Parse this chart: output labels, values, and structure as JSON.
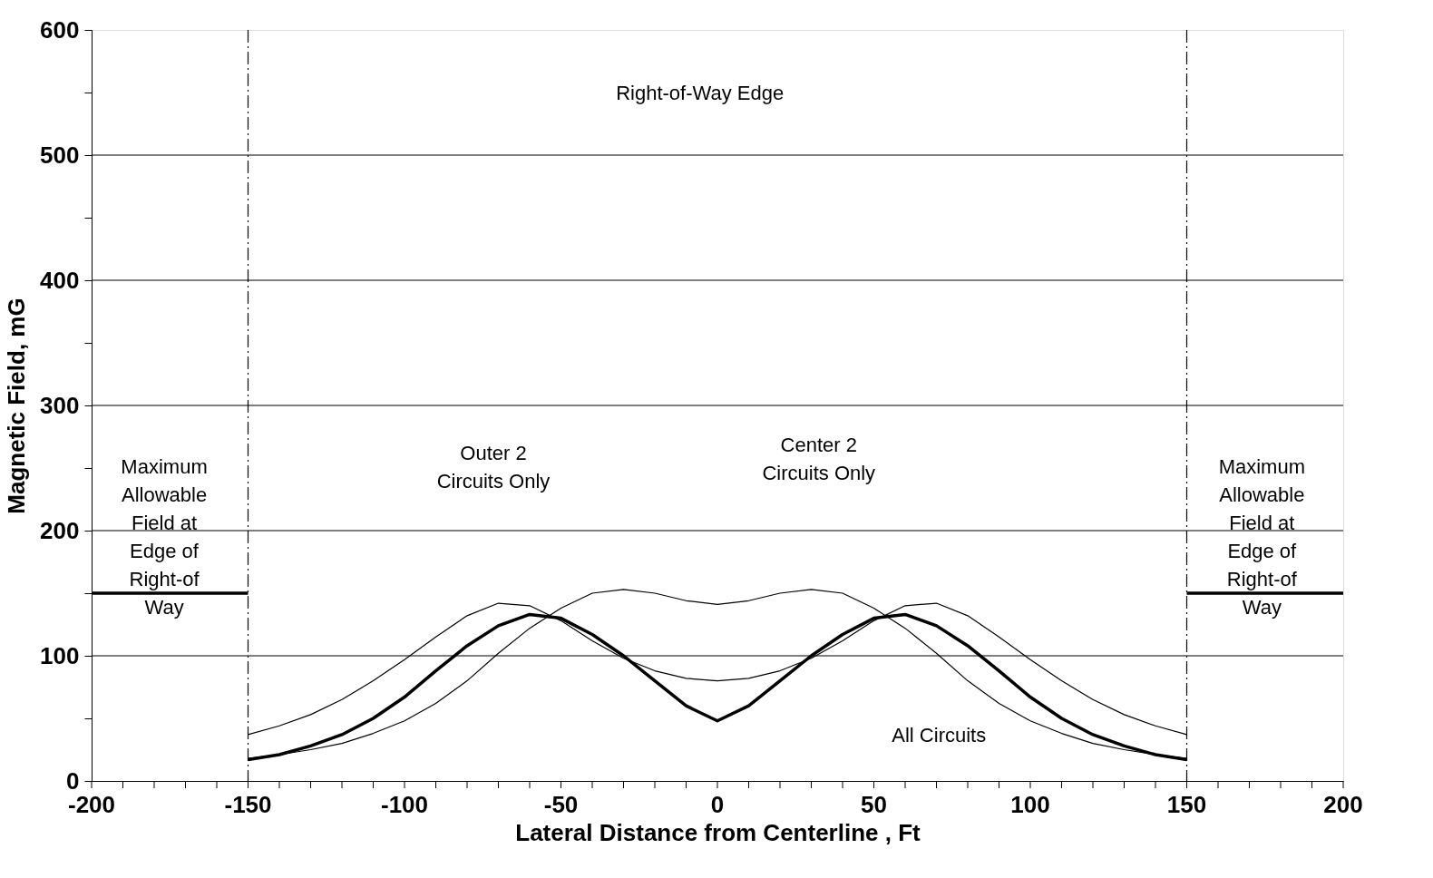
{
  "chart_data": {
    "type": "line",
    "xlabel": "Lateral Distance from Centerline , Ft",
    "ylabel": "Magnetic Field, mG",
    "x": [
      -150,
      -140,
      -130,
      -120,
      -110,
      -100,
      -90,
      -80,
      -70,
      -60,
      -50,
      -40,
      -30,
      -20,
      -10,
      0,
      10,
      20,
      30,
      40,
      50,
      60,
      70,
      80,
      90,
      100,
      110,
      120,
      130,
      140,
      150
    ],
    "series": [
      {
        "color": "#000000",
        "values": [
          17,
          21,
          28,
          37,
          50,
          67,
          88,
          108,
          124,
          133,
          130,
          117,
          100,
          80,
          60,
          48,
          60,
          80,
          100,
          117,
          130,
          133,
          124,
          108,
          88,
          67,
          50,
          37,
          28,
          21,
          17
        ]
      },
      {
        "color": "#000000",
        "values": [
          37,
          44,
          53,
          65,
          80,
          97,
          115,
          132,
          142,
          140,
          128,
          112,
          98,
          88,
          82,
          80,
          82,
          88,
          98,
          112,
          128,
          140,
          142,
          132,
          115,
          97,
          80,
          65,
          53,
          44,
          37
        ]
      },
      {
        "color": "#000000",
        "values": [
          18,
          21,
          25,
          30,
          38,
          48,
          62,
          80,
          102,
          122,
          138,
          150,
          153,
          150,
          144,
          141,
          144,
          150,
          153,
          150,
          138,
          122,
          102,
          80,
          62,
          48,
          38,
          30,
          25,
          21,
          18
        ]
      },
      {
        "color": "#000000",
        "x": [
          -200,
          -150
        ],
        "values": [
          150,
          150
        ]
      },
      {
        "color": "#000000",
        "x": [
          150,
          200
        ],
        "values": [
          150,
          150
        ]
      }
    ],
    "xlim": [
      -200,
      200
    ],
    "ylim": [
      0,
      600
    ],
    "xticks": [
      -200,
      {
        "value": -190,
        "label": null
      },
      {
        "value": -180,
        "label": null
      },
      {
        "value": -170,
        "label": null
      },
      {
        "value": -160,
        "label": null
      },
      -150,
      {
        "value": -140,
        "label": null
      },
      {
        "value": -130,
        "label": null
      },
      {
        "value": -120,
        "label": null
      },
      {
        "value": -110,
        "label": null
      },
      -100,
      {
        "value": -90,
        "label": null
      },
      {
        "value": -80,
        "label": null
      },
      {
        "value": -70,
        "label": null
      },
      {
        "value": -60,
        "label": null
      },
      -50,
      {
        "value": -40,
        "label": null
      },
      {
        "value": -30,
        "label": null
      },
      {
        "value": -20,
        "label": null
      },
      {
        "value": -10,
        "label": null
      },
      0,
      {
        "value": 10,
        "label": null
      },
      {
        "value": 20,
        "label": null
      },
      {
        "value": 30,
        "label": null
      },
      {
        "value": 40,
        "label": null
      },
      50,
      {
        "value": 60,
        "label": null
      },
      {
        "value": 70,
        "label": null
      },
      {
        "value": 80,
        "label": null
      },
      {
        "value": 90,
        "label": null
      },
      100,
      {
        "value": 110,
        "label": null
      },
      {
        "value": 120,
        "label": null
      },
      {
        "value": 130,
        "label": null
      },
      {
        "value": 140,
        "label": null
      },
      150,
      {
        "value": 160,
        "label": null
      },
      {
        "value": 170,
        "label": null
      },
      {
        "value": 180,
        "label": null
      },
      {
        "value": 190,
        "label": null
      },
      200
    ],
    "yticks": [
      0,
      {
        "value": 50,
        "label": null
      },
      100,
      {
        "value": 150,
        "label": null
      },
      200,
      {
        "value": 250,
        "label": null
      },
      300,
      {
        "value": 350,
        "label": null
      },
      400,
      {
        "value": 450,
        "label": null
      },
      500,
      {
        "value": 550,
        "label": null
      },
      600
    ],
    "grid": "y",
    "marker": "none",
    "line_style": "solid",
    "ref_lines": [
      {
        "axis": "x",
        "value": -150,
        "line_style": "dashed"
      },
      {
        "axis": "x",
        "value": 150,
        "line_style": "dashed"
      }
    ],
    "annotations": [
      "Right-of-Way Edge",
      "Maximum\nAllowable\nField at\nEdge of\nRight-of\nWay",
      "Maximum\nAllowable\nField at\nEdge of\nRight-of\nWay",
      "Outer 2\nCircuits Only",
      "Center 2\nCircuits Only",
      "All Circuits"
    ]
  }
}
